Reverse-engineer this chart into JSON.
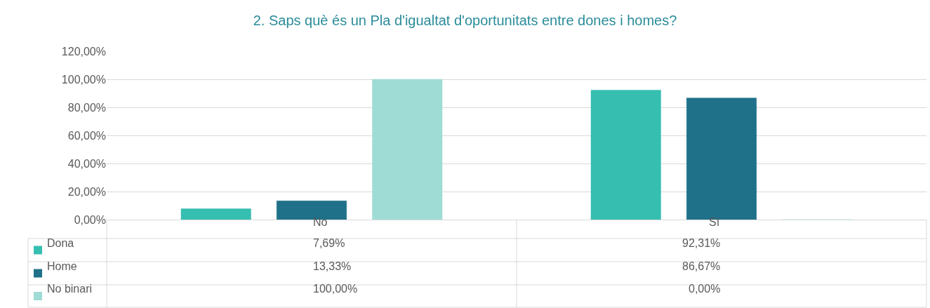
{
  "chart_data": {
    "type": "bar",
    "title": "2. Saps què és un Pla d'igualtat d'oportunitats entre dones i homes?",
    "categories": [
      "No",
      "Sí"
    ],
    "series": [
      {
        "name": "Dona",
        "color": "#36bfb1",
        "values": [
          7.69,
          92.31
        ],
        "value_labels": [
          "7,69%",
          "92,31%"
        ]
      },
      {
        "name": "Home",
        "color": "#1f7189",
        "values": [
          13.33,
          86.67
        ],
        "value_labels": [
          "13,33%",
          "86,67%"
        ]
      },
      {
        "name": "No binari",
        "color": "#9fdcd6",
        "values": [
          100.0,
          0.0
        ],
        "value_labels": [
          "100,00%",
          "0,00%"
        ]
      }
    ],
    "ylim": [
      0,
      120
    ],
    "yticks": [
      {
        "value": 0,
        "label": "0,00%"
      },
      {
        "value": 20,
        "label": "20,00%"
      },
      {
        "value": 40,
        "label": "40,00%"
      },
      {
        "value": 60,
        "label": "60,00%"
      },
      {
        "value": 80,
        "label": "80,00%"
      },
      {
        "value": 100,
        "label": "100,00%"
      },
      {
        "value": 120,
        "label": "120,00%"
      }
    ],
    "grid": "y",
    "legend": "bottom"
  }
}
